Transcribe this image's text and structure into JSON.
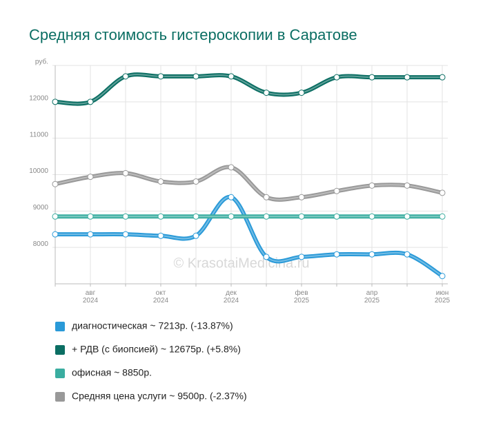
{
  "chart_data": {
    "type": "line",
    "title": "Средняя стоимость гистероскопии в Саратове",
    "watermark": "© KrasotaiMedicina.ru",
    "categories": [
      null,
      "авг 2024",
      null,
      "окт 2024",
      null,
      "дек 2024",
      null,
      "фев 2025",
      null,
      "апр 2025",
      null,
      "июн 2025"
    ],
    "ylim": [
      7000,
      13000
    ],
    "yticks": [
      8000,
      9000,
      10000,
      11000,
      12000,
      {
        "value": 13000,
        "label": "руб."
      }
    ],
    "grid": true,
    "legend": "bottom",
    "series": [
      {
        "name": "диагностическая ~ 7213р. (-13.87%)",
        "color": "#2a9ad8",
        "values": [
          8360,
          8360,
          8360,
          8320,
          8320,
          9380,
          7740,
          7740,
          7810,
          7810,
          7810,
          7213
        ]
      },
      {
        "name": "+ РДВ (с биопсией) ~ 12675р. (+5.8%)",
        "color": "#0b6e63",
        "values": [
          12000,
          12000,
          12700,
          12700,
          12700,
          12700,
          12250,
          12250,
          12675,
          12675,
          12675,
          12675
        ]
      },
      {
        "name": "офисная ~ 8850р.",
        "color": "#3aada0",
        "values": [
          8850,
          8850,
          8850,
          8850,
          8850,
          8850,
          8850,
          8850,
          8850,
          8850,
          8850,
          8850
        ]
      },
      {
        "name": "Средняя цена услуги ~ 9500р. (-2.37%)",
        "color": "#999999",
        "values": [
          9740,
          9940,
          10040,
          9810,
          9810,
          10200,
          9380,
          9380,
          9550,
          9700,
          9700,
          9500
        ]
      }
    ]
  }
}
